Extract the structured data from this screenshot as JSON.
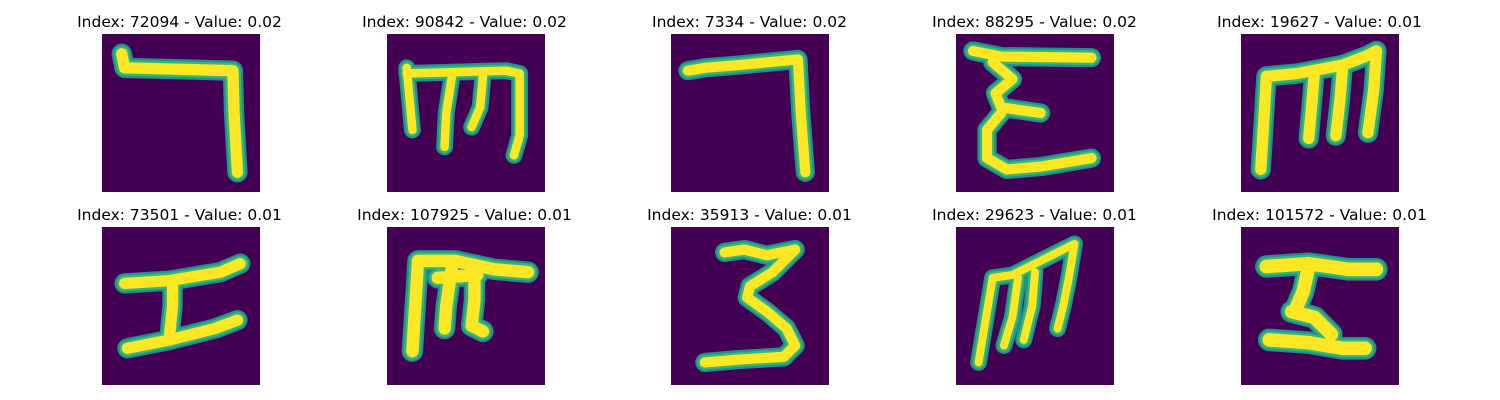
{
  "colors": {
    "background": "#440154",
    "stroke_core": "#fde725",
    "stroke_edge": "#35b779",
    "stroke_fringe": "#21918c"
  },
  "panels": [
    {
      "title": "Index: 72094 - Value: 0.02"
    },
    {
      "title": "Index: 90842 - Value: 0.02"
    },
    {
      "title": "Index: 7334 - Value: 0.02"
    },
    {
      "title": "Index: 88295 - Value: 0.02"
    },
    {
      "title": "Index: 19627 - Value: 0.01"
    },
    {
      "title": "Index: 73501 - Value: 0.01"
    },
    {
      "title": "Index: 107925 - Value: 0.01"
    },
    {
      "title": "Index: 35913 - Value: 0.01"
    },
    {
      "title": "Index: 29623 - Value: 0.01"
    },
    {
      "title": "Index: 101572 - Value: 0.01"
    }
  ]
}
